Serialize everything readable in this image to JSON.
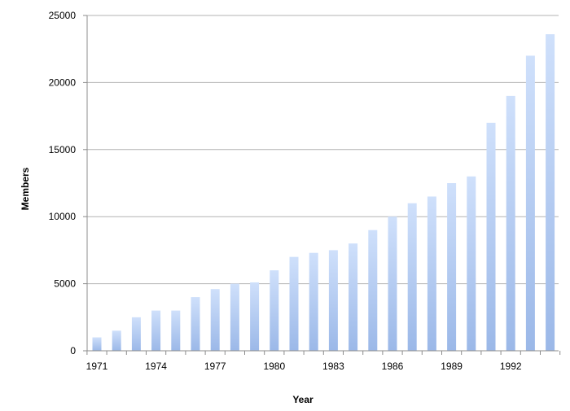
{
  "chart_data": {
    "type": "bar",
    "title": "",
    "xlabel": "Year",
    "ylabel": "Members",
    "ylim": [
      0,
      25000
    ],
    "yticks": [
      0,
      5000,
      10000,
      15000,
      20000,
      25000
    ],
    "grid": "horizontal",
    "legend": "none",
    "categories": [
      "1971",
      "1972",
      "1973",
      "1974",
      "1975",
      "1976",
      "1977",
      "1978",
      "1979",
      "1980",
      "1981",
      "1982",
      "1983",
      "1984",
      "1985",
      "1986",
      "1987",
      "1988",
      "1989",
      "1990",
      "1991",
      "1992",
      "1993",
      "1994"
    ],
    "xtick_labels": [
      "1971",
      "1974",
      "1977",
      "1980",
      "1983",
      "1986",
      "1989",
      "1992"
    ],
    "values": [
      1000,
      1500,
      2500,
      3000,
      3000,
      4000,
      4600,
      5000,
      5100,
      6000,
      7000,
      7300,
      7500,
      8000,
      9000,
      10000,
      11000,
      11500,
      12500,
      13000,
      17000,
      19000,
      22000,
      23600
    ],
    "colors": {
      "bar_top": "#cfe0fb",
      "bar_bottom": "#9bb8e8",
      "grid": "#b3b3b3",
      "axis": "#8c8c8c"
    }
  }
}
